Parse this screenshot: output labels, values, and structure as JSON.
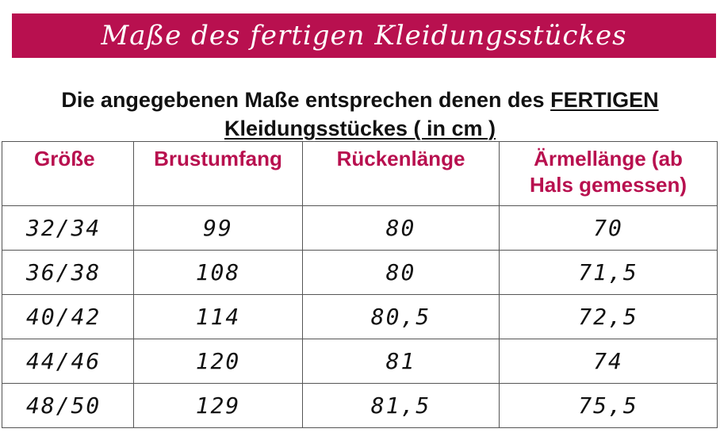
{
  "banner": {
    "title": "Maße des fertigen Kleidungsstückes"
  },
  "intro": {
    "line1_prefix": "Die angegebenen Maße entsprechen denen des ",
    "line1_emphasis": "FERTIGEN ",
    "line2": "Kleidungsstückes ( in cm )"
  },
  "table": {
    "headers": {
      "size": "Größe",
      "chest": "Brustumfang",
      "back": "Rückenlänge",
      "sleeve_line1": "Ärmellänge (ab",
      "sleeve_line2": "Hals gemessen)"
    },
    "rows": [
      {
        "size": "32/34",
        "chest": "99",
        "back": "80",
        "sleeve": "70"
      },
      {
        "size": "36/38",
        "chest": "108",
        "back": "80",
        "sleeve": "71,5"
      },
      {
        "size": "40/42",
        "chest": "114",
        "back": "80,5",
        "sleeve": "72,5"
      },
      {
        "size": "44/46",
        "chest": "120",
        "back": "81",
        "sleeve": "74"
      },
      {
        "size": "48/50",
        "chest": "129",
        "back": "81,5",
        "sleeve": "75,5"
      }
    ]
  },
  "colors": {
    "accent": "#b8104f",
    "text": "#111111",
    "border": "#555555"
  }
}
